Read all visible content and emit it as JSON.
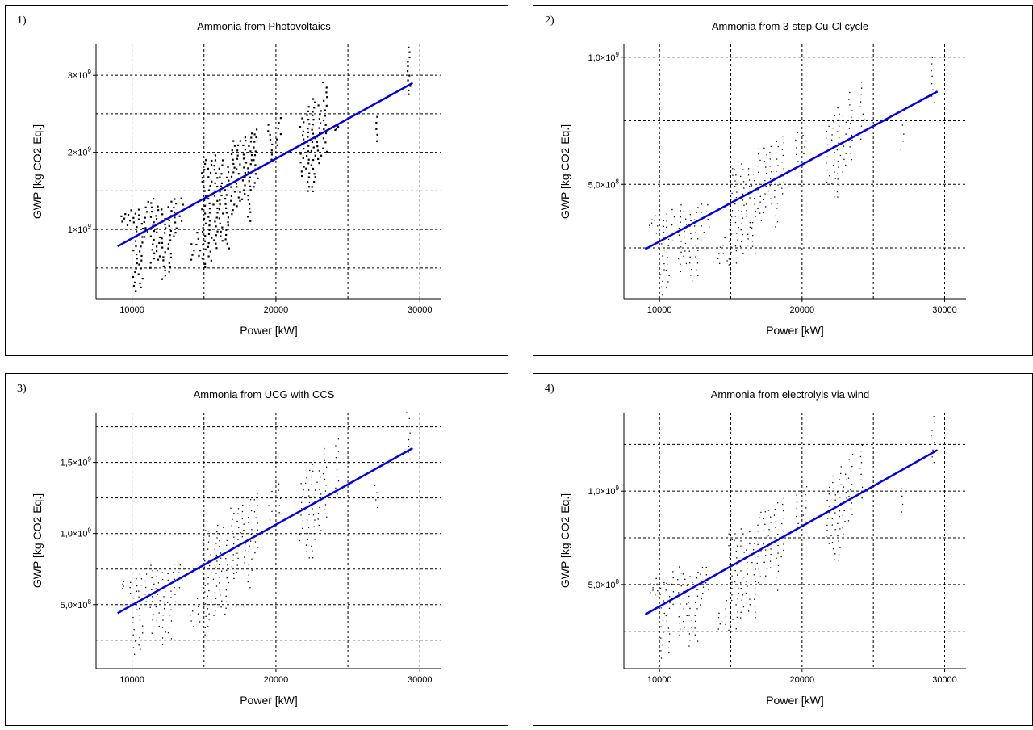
{
  "chart_data": [
    {
      "type": "scatter",
      "label": "1)",
      "title": "Ammonia from Photovoltaics",
      "xlabel": "Power [kW]",
      "ylabel": "GWP [kg CO2 Eq.]",
      "xlim": [
        7500,
        31500
      ],
      "ylim": [
        100000000,
        3400000000
      ],
      "x_ticks": [
        10000,
        20000,
        30000
      ],
      "x_tick_labels": [
        "10000",
        "20000",
        "30000"
      ],
      "y_ticks": [
        1000000000,
        2000000000,
        3000000000
      ],
      "y_tick_labels": [
        [
          "1",
          "9"
        ],
        [
          "2",
          "9"
        ],
        [
          "3",
          "9"
        ]
      ],
      "grid": true,
      "trend": {
        "x": [
          9000,
          29500
        ],
        "y": [
          780000000,
          2900000000
        ]
      },
      "clusters": [
        {
          "x": 9400,
          "ymin": 1100000000,
          "ymax": 1200000000
        },
        {
          "x": 9800,
          "ymin": 1050000000,
          "ymax": 1250000000
        },
        {
          "x": 10200,
          "ymin": 200000000,
          "ymax": 1200000000
        },
        {
          "x": 10600,
          "ymin": 250000000,
          "ymax": 1250000000
        },
        {
          "x": 11000,
          "ymin": 900000000,
          "ymax": 1350000000
        },
        {
          "x": 11400,
          "ymin": 500000000,
          "ymax": 1400000000
        },
        {
          "x": 11800,
          "ymin": 600000000,
          "ymax": 1300000000
        },
        {
          "x": 12200,
          "ymin": 350000000,
          "ymax": 1250000000
        },
        {
          "x": 12600,
          "ymin": 450000000,
          "ymax": 1350000000
        },
        {
          "x": 13000,
          "ymin": 900000000,
          "ymax": 1400000000
        },
        {
          "x": 13400,
          "ymin": 1100000000,
          "ymax": 1400000000
        },
        {
          "x": 14200,
          "ymin": 600000000,
          "ymax": 800000000
        },
        {
          "x": 14600,
          "ymin": 650000000,
          "ymax": 950000000
        },
        {
          "x": 15000,
          "ymin": 500000000,
          "ymax": 1900000000
        },
        {
          "x": 15400,
          "ymin": 600000000,
          "ymax": 1900000000
        },
        {
          "x": 15800,
          "ymin": 750000000,
          "ymax": 1950000000
        },
        {
          "x": 16200,
          "ymin": 850000000,
          "ymax": 1900000000
        },
        {
          "x": 16600,
          "ymin": 750000000,
          "ymax": 1800000000
        },
        {
          "x": 17000,
          "ymin": 1200000000,
          "ymax": 2150000000
        },
        {
          "x": 17400,
          "ymin": 1300000000,
          "ymax": 2150000000
        },
        {
          "x": 17800,
          "ymin": 1400000000,
          "ymax": 2200000000
        },
        {
          "x": 18200,
          "ymin": 1100000000,
          "ymax": 2250000000
        },
        {
          "x": 18600,
          "ymin": 1550000000,
          "ymax": 2300000000
        },
        {
          "x": 19600,
          "ymin": 1900000000,
          "ymax": 2350000000
        },
        {
          "x": 20200,
          "ymin": 2100000000,
          "ymax": 2450000000
        },
        {
          "x": 21800,
          "ymin": 1700000000,
          "ymax": 2450000000
        },
        {
          "x": 22200,
          "ymin": 1500000000,
          "ymax": 2600000000
        },
        {
          "x": 22600,
          "ymin": 1500000000,
          "ymax": 2700000000
        },
        {
          "x": 23000,
          "ymin": 1850000000,
          "ymax": 2600000000
        },
        {
          "x": 23400,
          "ymin": 2000000000,
          "ymax": 2900000000
        },
        {
          "x": 24200,
          "ymin": 2300000000,
          "ymax": 2350000000
        },
        {
          "x": 27000,
          "ymin": 2150000000,
          "ymax": 2450000000
        },
        {
          "x": 29200,
          "ymin": 2750000000,
          "ymax": 3350000000
        }
      ]
    },
    {
      "type": "scatter",
      "label": "2)",
      "title": "Ammonia from 3-step Cu-Cl cycle",
      "xlabel": "Power [kW]",
      "ylabel": "GWP [kg CO2 Eq.]",
      "xlim": [
        7500,
        31500
      ],
      "ylim": [
        50000000,
        1050000000
      ],
      "x_ticks": [
        10000,
        20000,
        30000
      ],
      "x_tick_labels": [
        "10000",
        "20000",
        "30000"
      ],
      "y_ticks": [
        500000000,
        1000000000
      ],
      "y_tick_labels": [
        [
          "5,0",
          "8"
        ],
        [
          "1,0",
          "9"
        ]
      ],
      "grid": true,
      "trend": {
        "x": [
          9000,
          29500
        ],
        "y": [
          245000000,
          865000000
        ]
      },
      "clusters": [
        {
          "x": 9400,
          "ymin": 330000000,
          "ymax": 360000000
        },
        {
          "x": 9800,
          "ymin": 310000000,
          "ymax": 380000000
        },
        {
          "x": 10200,
          "ymin": 70000000,
          "ymax": 360000000
        },
        {
          "x": 10600,
          "ymin": 90000000,
          "ymax": 380000000
        },
        {
          "x": 11000,
          "ymin": 280000000,
          "ymax": 400000000
        },
        {
          "x": 11400,
          "ymin": 160000000,
          "ymax": 420000000
        },
        {
          "x": 11800,
          "ymin": 190000000,
          "ymax": 390000000
        },
        {
          "x": 12200,
          "ymin": 120000000,
          "ymax": 380000000
        },
        {
          "x": 12600,
          "ymin": 140000000,
          "ymax": 410000000
        },
        {
          "x": 13000,
          "ymin": 280000000,
          "ymax": 420000000
        },
        {
          "x": 13400,
          "ymin": 330000000,
          "ymax": 420000000
        },
        {
          "x": 14200,
          "ymin": 190000000,
          "ymax": 250000000
        },
        {
          "x": 14600,
          "ymin": 200000000,
          "ymax": 290000000
        },
        {
          "x": 15000,
          "ymin": 160000000,
          "ymax": 560000000
        },
        {
          "x": 15400,
          "ymin": 190000000,
          "ymax": 560000000
        },
        {
          "x": 15800,
          "ymin": 230000000,
          "ymax": 580000000
        },
        {
          "x": 16200,
          "ymin": 260000000,
          "ymax": 560000000
        },
        {
          "x": 16600,
          "ymin": 230000000,
          "ymax": 540000000
        },
        {
          "x": 17000,
          "ymin": 360000000,
          "ymax": 640000000
        },
        {
          "x": 17400,
          "ymin": 390000000,
          "ymax": 640000000
        },
        {
          "x": 17800,
          "ymin": 420000000,
          "ymax": 650000000
        },
        {
          "x": 18200,
          "ymin": 330000000,
          "ymax": 670000000
        },
        {
          "x": 18600,
          "ymin": 460000000,
          "ymax": 690000000
        },
        {
          "x": 19600,
          "ymin": 560000000,
          "ymax": 700000000
        },
        {
          "x": 20200,
          "ymin": 620000000,
          "ymax": 720000000
        },
        {
          "x": 21800,
          "ymin": 510000000,
          "ymax": 730000000
        },
        {
          "x": 22200,
          "ymin": 450000000,
          "ymax": 770000000
        },
        {
          "x": 22600,
          "ymin": 450000000,
          "ymax": 800000000
        },
        {
          "x": 23000,
          "ymin": 550000000,
          "ymax": 770000000
        },
        {
          "x": 23400,
          "ymin": 600000000,
          "ymax": 860000000
        },
        {
          "x": 24200,
          "ymin": 680000000,
          "ymax": 900000000
        },
        {
          "x": 27000,
          "ymin": 640000000,
          "ymax": 730000000
        },
        {
          "x": 29200,
          "ymin": 820000000,
          "ymax": 1000000000
        }
      ]
    },
    {
      "type": "scatter",
      "label": "3)",
      "title": "Ammonia from UCG with CCS",
      "xlabel": "Power [kW]",
      "ylabel": "GWP [kg CO2 Eq.]",
      "xlim": [
        7500,
        31500
      ],
      "ylim": [
        50000000,
        1850000000
      ],
      "x_ticks": [
        10000,
        20000,
        30000
      ],
      "x_tick_labels": [
        "10000",
        "20000",
        "30000"
      ],
      "y_ticks": [
        500000000,
        1000000000,
        1500000000
      ],
      "y_tick_labels": [
        [
          "5,0",
          "8"
        ],
        [
          "1,0",
          "9"
        ],
        [
          "1,5",
          "9"
        ]
      ],
      "grid": true,
      "trend": {
        "x": [
          9000,
          29500
        ],
        "y": [
          440000000,
          1600000000
        ]
      },
      "clusters": [
        {
          "x": 9400,
          "ymin": 610000000,
          "ymax": 660000000
        },
        {
          "x": 9800,
          "ymin": 580000000,
          "ymax": 700000000
        },
        {
          "x": 10200,
          "ymin": 150000000,
          "ymax": 680000000
        },
        {
          "x": 10600,
          "ymin": 180000000,
          "ymax": 720000000
        },
        {
          "x": 11000,
          "ymin": 520000000,
          "ymax": 760000000
        },
        {
          "x": 11400,
          "ymin": 300000000,
          "ymax": 780000000
        },
        {
          "x": 11800,
          "ymin": 350000000,
          "ymax": 740000000
        },
        {
          "x": 12200,
          "ymin": 220000000,
          "ymax": 720000000
        },
        {
          "x": 12600,
          "ymin": 260000000,
          "ymax": 760000000
        },
        {
          "x": 13000,
          "ymin": 520000000,
          "ymax": 780000000
        },
        {
          "x": 13400,
          "ymin": 620000000,
          "ymax": 780000000
        },
        {
          "x": 14200,
          "ymin": 350000000,
          "ymax": 460000000
        },
        {
          "x": 14600,
          "ymin": 380000000,
          "ymax": 540000000
        },
        {
          "x": 15000,
          "ymin": 290000000,
          "ymax": 1020000000
        },
        {
          "x": 15400,
          "ymin": 350000000,
          "ymax": 1020000000
        },
        {
          "x": 15800,
          "ymin": 420000000,
          "ymax": 1060000000
        },
        {
          "x": 16200,
          "ymin": 480000000,
          "ymax": 1040000000
        },
        {
          "x": 16600,
          "ymin": 430000000,
          "ymax": 1000000000
        },
        {
          "x": 17000,
          "ymin": 680000000,
          "ymax": 1180000000
        },
        {
          "x": 17400,
          "ymin": 730000000,
          "ymax": 1180000000
        },
        {
          "x": 17800,
          "ymin": 790000000,
          "ymax": 1200000000
        },
        {
          "x": 18200,
          "ymin": 620000000,
          "ymax": 1240000000
        },
        {
          "x": 18600,
          "ymin": 860000000,
          "ymax": 1280000000
        },
        {
          "x": 19600,
          "ymin": 1050000000,
          "ymax": 1300000000
        },
        {
          "x": 20200,
          "ymin": 1150000000,
          "ymax": 1350000000
        },
        {
          "x": 21800,
          "ymin": 950000000,
          "ymax": 1350000000
        },
        {
          "x": 22200,
          "ymin": 830000000,
          "ymax": 1440000000
        },
        {
          "x": 22600,
          "ymin": 830000000,
          "ymax": 1480000000
        },
        {
          "x": 23000,
          "ymin": 1020000000,
          "ymax": 1440000000
        },
        {
          "x": 23400,
          "ymin": 1120000000,
          "ymax": 1600000000
        },
        {
          "x": 24200,
          "ymin": 1280000000,
          "ymax": 1660000000
        },
        {
          "x": 27000,
          "ymin": 1180000000,
          "ymax": 1340000000
        },
        {
          "x": 29200,
          "ymin": 1520000000,
          "ymax": 1850000000
        }
      ]
    },
    {
      "type": "scatter",
      "label": "4)",
      "title": "Ammonia from electrolyis via wind",
      "xlabel": "Power [kW]",
      "ylabel": "GWP [kg CO2 Eq.]",
      "xlim": [
        7500,
        31500
      ],
      "ylim": [
        50000000,
        1420000000
      ],
      "x_ticks": [
        10000,
        20000,
        30000
      ],
      "x_tick_labels": [
        "10000",
        "20000",
        "30000"
      ],
      "y_ticks": [
        500000000,
        1000000000
      ],
      "y_tick_labels": [
        [
          "5,0",
          "8"
        ],
        [
          "1,0",
          "9"
        ]
      ],
      "grid": true,
      "trend": {
        "x": [
          9000,
          29500
        ],
        "y": [
          340000000,
          1220000000
        ]
      },
      "clusters": [
        {
          "x": 9400,
          "ymin": 460000000,
          "ymax": 500000000
        },
        {
          "x": 9800,
          "ymin": 440000000,
          "ymax": 530000000
        },
        {
          "x": 10200,
          "ymin": 110000000,
          "ymax": 510000000
        },
        {
          "x": 10600,
          "ymin": 130000000,
          "ymax": 540000000
        },
        {
          "x": 11000,
          "ymin": 390000000,
          "ymax": 570000000
        },
        {
          "x": 11400,
          "ymin": 230000000,
          "ymax": 590000000
        },
        {
          "x": 11800,
          "ymin": 270000000,
          "ymax": 560000000
        },
        {
          "x": 12200,
          "ymin": 170000000,
          "ymax": 540000000
        },
        {
          "x": 12600,
          "ymin": 200000000,
          "ymax": 570000000
        },
        {
          "x": 13000,
          "ymin": 390000000,
          "ymax": 590000000
        },
        {
          "x": 13400,
          "ymin": 470000000,
          "ymax": 590000000
        },
        {
          "x": 14200,
          "ymin": 260000000,
          "ymax": 350000000
        },
        {
          "x": 14600,
          "ymin": 290000000,
          "ymax": 410000000
        },
        {
          "x": 15000,
          "ymin": 220000000,
          "ymax": 770000000
        },
        {
          "x": 15400,
          "ymin": 260000000,
          "ymax": 770000000
        },
        {
          "x": 15800,
          "ymin": 320000000,
          "ymax": 800000000
        },
        {
          "x": 16200,
          "ymin": 360000000,
          "ymax": 780000000
        },
        {
          "x": 16600,
          "ymin": 320000000,
          "ymax": 750000000
        },
        {
          "x": 17000,
          "ymin": 510000000,
          "ymax": 890000000
        },
        {
          "x": 17400,
          "ymin": 550000000,
          "ymax": 890000000
        },
        {
          "x": 17800,
          "ymin": 590000000,
          "ymax": 900000000
        },
        {
          "x": 18200,
          "ymin": 470000000,
          "ymax": 940000000
        },
        {
          "x": 18600,
          "ymin": 650000000,
          "ymax": 960000000
        },
        {
          "x": 19600,
          "ymin": 790000000,
          "ymax": 980000000
        },
        {
          "x": 20200,
          "ymin": 870000000,
          "ymax": 1020000000
        },
        {
          "x": 21800,
          "ymin": 720000000,
          "ymax": 1020000000
        },
        {
          "x": 22200,
          "ymin": 630000000,
          "ymax": 1080000000
        },
        {
          "x": 22600,
          "ymin": 630000000,
          "ymax": 1130000000
        },
        {
          "x": 23000,
          "ymin": 770000000,
          "ymax": 1090000000
        },
        {
          "x": 23400,
          "ymin": 840000000,
          "ymax": 1200000000
        },
        {
          "x": 24200,
          "ymin": 960000000,
          "ymax": 1250000000
        },
        {
          "x": 27000,
          "ymin": 890000000,
          "ymax": 1010000000
        },
        {
          "x": 29200,
          "ymin": 1150000000,
          "ymax": 1400000000
        }
      ]
    }
  ],
  "colors": {
    "trend": "#0000ee",
    "points": "#000000",
    "grid": "#000000"
  }
}
